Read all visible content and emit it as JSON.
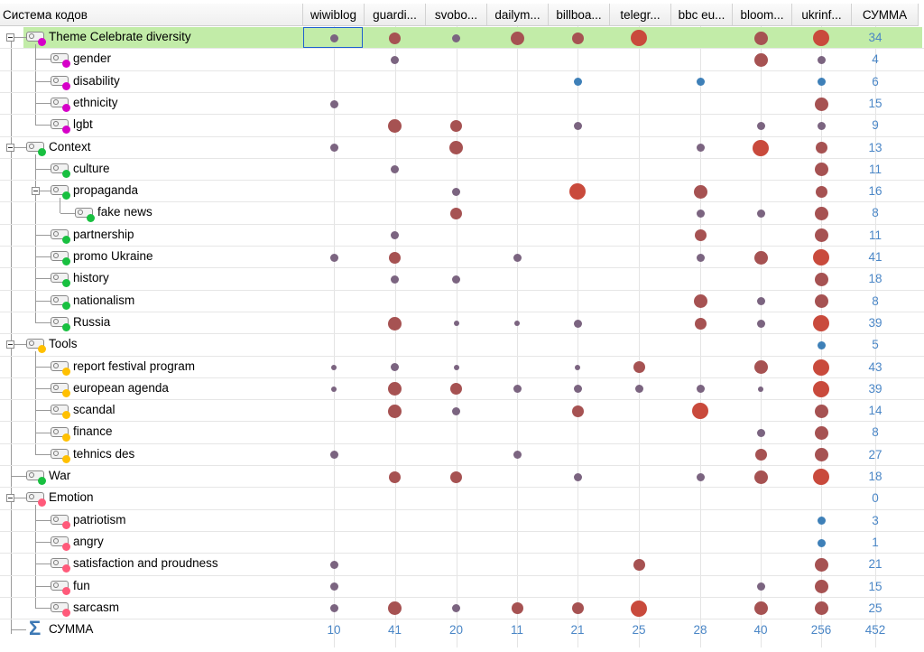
{
  "header": {
    "tree_title": "Система кодов",
    "columns": [
      "wiwiblog",
      "guardi...",
      "svobo...",
      "dailym...",
      "billboa...",
      "telegr...",
      "bbc eu...",
      "bloom...",
      "ukrinf...",
      "СУММА"
    ]
  },
  "colors": {
    "pink": "#d600c8",
    "green": "#18c040",
    "yellow": "#ffc000",
    "rose": "#ff5a7a",
    "dot_red": "#c94a3c",
    "dot_brown": "#a65252",
    "dot_mauve": "#7b6480",
    "dot_blue": "#3e80b8",
    "count_blue": "#4a86c6",
    "selection": "#c2eca8"
  },
  "rows": [
    {
      "label": "Theme Celebrate diversity",
      "level": 0,
      "expander": true,
      "color": "pink",
      "total": "34",
      "selected": true,
      "cells": [
        [
          1,
          "mauve"
        ],
        [
          2,
          "brown"
        ],
        [
          1,
          "mauve"
        ],
        [
          3,
          "brown"
        ],
        [
          2,
          "brown"
        ],
        [
          4,
          "red"
        ],
        [
          0,
          ""
        ],
        [
          3,
          "brown"
        ],
        [
          4,
          "red"
        ]
      ]
    },
    {
      "label": "gender",
      "level": 1,
      "color": "pink",
      "total": "4",
      "cells": [
        [
          0,
          ""
        ],
        [
          1,
          "mauve"
        ],
        [
          0,
          ""
        ],
        [
          0,
          ""
        ],
        [
          0,
          ""
        ],
        [
          0,
          ""
        ],
        [
          0,
          ""
        ],
        [
          3,
          "brown"
        ],
        [
          1,
          "mauve"
        ]
      ]
    },
    {
      "label": "disability",
      "level": 1,
      "color": "pink",
      "total": "6",
      "cells": [
        [
          0,
          ""
        ],
        [
          0,
          ""
        ],
        [
          0,
          ""
        ],
        [
          0,
          ""
        ],
        [
          1,
          "blue"
        ],
        [
          0,
          ""
        ],
        [
          1,
          "blue"
        ],
        [
          0,
          ""
        ],
        [
          1,
          "blue"
        ]
      ]
    },
    {
      "label": "ethnicity",
      "level": 1,
      "color": "pink",
      "total": "15",
      "cells": [
        [
          1,
          "mauve"
        ],
        [
          0,
          ""
        ],
        [
          0,
          ""
        ],
        [
          0,
          ""
        ],
        [
          0,
          ""
        ],
        [
          0,
          ""
        ],
        [
          0,
          ""
        ],
        [
          0,
          ""
        ],
        [
          3,
          "brown"
        ]
      ]
    },
    {
      "label": "lgbt",
      "level": 1,
      "color": "pink",
      "total": "9",
      "cells": [
        [
          0,
          ""
        ],
        [
          3,
          "brown"
        ],
        [
          2,
          "brown"
        ],
        [
          0,
          ""
        ],
        [
          1,
          "mauve"
        ],
        [
          0,
          ""
        ],
        [
          0,
          ""
        ],
        [
          1,
          "mauve"
        ],
        [
          1,
          "mauve"
        ]
      ]
    },
    {
      "label": "Context",
      "level": 0,
      "expander": true,
      "color": "green",
      "total": "13",
      "cells": [
        [
          1,
          "mauve"
        ],
        [
          0,
          ""
        ],
        [
          3,
          "brown"
        ],
        [
          0,
          ""
        ],
        [
          0,
          ""
        ],
        [
          0,
          ""
        ],
        [
          1,
          "mauve"
        ],
        [
          4,
          "red"
        ],
        [
          2,
          "brown"
        ]
      ]
    },
    {
      "label": "culture",
      "level": 1,
      "color": "green",
      "total": "11",
      "cells": [
        [
          0,
          ""
        ],
        [
          1,
          "mauve"
        ],
        [
          0,
          ""
        ],
        [
          0,
          ""
        ],
        [
          0,
          ""
        ],
        [
          0,
          ""
        ],
        [
          0,
          ""
        ],
        [
          0,
          ""
        ],
        [
          3,
          "brown"
        ]
      ]
    },
    {
      "label": "propaganda",
      "level": 1,
      "expander": true,
      "color": "green",
      "total": "16",
      "cells": [
        [
          0,
          ""
        ],
        [
          0,
          ""
        ],
        [
          1,
          "mauve"
        ],
        [
          0,
          ""
        ],
        [
          4,
          "red"
        ],
        [
          0,
          ""
        ],
        [
          3,
          "brown"
        ],
        [
          0,
          ""
        ],
        [
          2,
          "brown"
        ]
      ]
    },
    {
      "label": "fake news",
      "level": 2,
      "color": "green",
      "total": "8",
      "cells": [
        [
          0,
          ""
        ],
        [
          0,
          ""
        ],
        [
          2,
          "brown"
        ],
        [
          0,
          ""
        ],
        [
          0,
          ""
        ],
        [
          0,
          ""
        ],
        [
          1,
          "mauve"
        ],
        [
          1,
          "mauve"
        ],
        [
          3,
          "brown"
        ]
      ]
    },
    {
      "label": "partnership",
      "level": 1,
      "color": "green",
      "total": "11",
      "cells": [
        [
          0,
          ""
        ],
        [
          1,
          "mauve"
        ],
        [
          0,
          ""
        ],
        [
          0,
          ""
        ],
        [
          0,
          ""
        ],
        [
          0,
          ""
        ],
        [
          2,
          "brown"
        ],
        [
          0,
          ""
        ],
        [
          3,
          "brown"
        ]
      ]
    },
    {
      "label": "promo Ukraine",
      "level": 1,
      "color": "green",
      "total": "41",
      "cells": [
        [
          1,
          "mauve"
        ],
        [
          2,
          "brown"
        ],
        [
          0,
          ""
        ],
        [
          1,
          "mauve"
        ],
        [
          0,
          ""
        ],
        [
          0,
          ""
        ],
        [
          1,
          "mauve"
        ],
        [
          3,
          "brown"
        ],
        [
          4,
          "red"
        ]
      ]
    },
    {
      "label": "history",
      "level": 1,
      "color": "green",
      "total": "18",
      "cells": [
        [
          0,
          ""
        ],
        [
          1,
          "mauve"
        ],
        [
          1,
          "mauve"
        ],
        [
          0,
          ""
        ],
        [
          0,
          ""
        ],
        [
          0,
          ""
        ],
        [
          0,
          ""
        ],
        [
          0,
          ""
        ],
        [
          3,
          "brown"
        ]
      ]
    },
    {
      "label": "nationalism",
      "level": 1,
      "color": "green",
      "total": "8",
      "cells": [
        [
          0,
          ""
        ],
        [
          0,
          ""
        ],
        [
          0,
          ""
        ],
        [
          0,
          ""
        ],
        [
          0,
          ""
        ],
        [
          0,
          ""
        ],
        [
          3,
          "brown"
        ],
        [
          1,
          "mauve"
        ],
        [
          3,
          "brown"
        ]
      ]
    },
    {
      "label": "Russia",
      "level": 1,
      "color": "green",
      "total": "39",
      "cells": [
        [
          0,
          ""
        ],
        [
          3,
          "brown"
        ],
        [
          0.5,
          "mauve"
        ],
        [
          0.5,
          "mauve"
        ],
        [
          1,
          "mauve"
        ],
        [
          0,
          ""
        ],
        [
          2,
          "brown"
        ],
        [
          1,
          "mauve"
        ],
        [
          4,
          "red"
        ]
      ]
    },
    {
      "label": "Tools",
      "level": 0,
      "expander": true,
      "color": "yellow",
      "total": "5",
      "cells": [
        [
          0,
          ""
        ],
        [
          0,
          ""
        ],
        [
          0,
          ""
        ],
        [
          0,
          ""
        ],
        [
          0,
          ""
        ],
        [
          0,
          ""
        ],
        [
          0,
          ""
        ],
        [
          0,
          ""
        ],
        [
          1,
          "blue"
        ]
      ]
    },
    {
      "label": "report festival program",
      "level": 1,
      "color": "yellow",
      "total": "43",
      "cells": [
        [
          0.5,
          "mauve"
        ],
        [
          1,
          "mauve"
        ],
        [
          0.5,
          "mauve"
        ],
        [
          0,
          ""
        ],
        [
          0.5,
          "mauve"
        ],
        [
          2,
          "brown"
        ],
        [
          0,
          ""
        ],
        [
          3,
          "brown"
        ],
        [
          4,
          "red"
        ]
      ]
    },
    {
      "label": "european agenda",
      "level": 1,
      "color": "yellow",
      "total": "39",
      "cells": [
        [
          0.5,
          "mauve"
        ],
        [
          3,
          "brown"
        ],
        [
          2,
          "brown"
        ],
        [
          1,
          "mauve"
        ],
        [
          1,
          "mauve"
        ],
        [
          1,
          "mauve"
        ],
        [
          1,
          "mauve"
        ],
        [
          0.5,
          "mauve"
        ],
        [
          4,
          "red"
        ]
      ]
    },
    {
      "label": "scandal",
      "level": 1,
      "color": "yellow",
      "total": "14",
      "cells": [
        [
          0,
          ""
        ],
        [
          3,
          "brown"
        ],
        [
          1,
          "mauve"
        ],
        [
          0,
          ""
        ],
        [
          2,
          "brown"
        ],
        [
          0,
          ""
        ],
        [
          4,
          "red"
        ],
        [
          0,
          ""
        ],
        [
          3,
          "brown"
        ]
      ]
    },
    {
      "label": "finance",
      "level": 1,
      "color": "yellow",
      "total": "8",
      "cells": [
        [
          0,
          ""
        ],
        [
          0,
          ""
        ],
        [
          0,
          ""
        ],
        [
          0,
          ""
        ],
        [
          0,
          ""
        ],
        [
          0,
          ""
        ],
        [
          0,
          ""
        ],
        [
          1,
          "mauve"
        ],
        [
          3,
          "brown"
        ]
      ]
    },
    {
      "label": "tehnics des",
      "level": 1,
      "color": "yellow",
      "total": "27",
      "cells": [
        [
          1,
          "mauve"
        ],
        [
          0,
          ""
        ],
        [
          0,
          ""
        ],
        [
          1,
          "mauve"
        ],
        [
          0,
          ""
        ],
        [
          0,
          ""
        ],
        [
          0,
          ""
        ],
        [
          2,
          "brown"
        ],
        [
          3,
          "brown"
        ]
      ]
    },
    {
      "label": "War",
      "level": 0,
      "color": "green",
      "total": "18",
      "cells": [
        [
          0,
          ""
        ],
        [
          2,
          "brown"
        ],
        [
          2,
          "brown"
        ],
        [
          0,
          ""
        ],
        [
          1,
          "mauve"
        ],
        [
          0,
          ""
        ],
        [
          1,
          "mauve"
        ],
        [
          3,
          "brown"
        ],
        [
          4,
          "red"
        ]
      ]
    },
    {
      "label": "Emotion",
      "level": 0,
      "expander": true,
      "color": "rose",
      "total": "0",
      "cells": [
        [
          0,
          ""
        ],
        [
          0,
          ""
        ],
        [
          0,
          ""
        ],
        [
          0,
          ""
        ],
        [
          0,
          ""
        ],
        [
          0,
          ""
        ],
        [
          0,
          ""
        ],
        [
          0,
          ""
        ],
        [
          0,
          ""
        ]
      ]
    },
    {
      "label": "patriotism",
      "level": 1,
      "color": "rose",
      "total": "3",
      "cells": [
        [
          0,
          ""
        ],
        [
          0,
          ""
        ],
        [
          0,
          ""
        ],
        [
          0,
          ""
        ],
        [
          0,
          ""
        ],
        [
          0,
          ""
        ],
        [
          0,
          ""
        ],
        [
          0,
          ""
        ],
        [
          1,
          "blue"
        ]
      ]
    },
    {
      "label": "angry",
      "level": 1,
      "color": "rose",
      "total": "1",
      "cells": [
        [
          0,
          ""
        ],
        [
          0,
          ""
        ],
        [
          0,
          ""
        ],
        [
          0,
          ""
        ],
        [
          0,
          ""
        ],
        [
          0,
          ""
        ],
        [
          0,
          ""
        ],
        [
          0,
          ""
        ],
        [
          1,
          "blue"
        ]
      ]
    },
    {
      "label": "satisfaction and proudness",
      "level": 1,
      "color": "rose",
      "total": "21",
      "cells": [
        [
          1,
          "mauve"
        ],
        [
          0,
          ""
        ],
        [
          0,
          ""
        ],
        [
          0,
          ""
        ],
        [
          0,
          ""
        ],
        [
          2,
          "brown"
        ],
        [
          0,
          ""
        ],
        [
          0,
          ""
        ],
        [
          3,
          "brown"
        ]
      ]
    },
    {
      "label": "fun",
      "level": 1,
      "color": "rose",
      "total": "15",
      "cells": [
        [
          1,
          "mauve"
        ],
        [
          0,
          ""
        ],
        [
          0,
          ""
        ],
        [
          0,
          ""
        ],
        [
          0,
          ""
        ],
        [
          0,
          ""
        ],
        [
          0,
          ""
        ],
        [
          1,
          "mauve"
        ],
        [
          3,
          "brown"
        ]
      ]
    },
    {
      "label": "sarcasm",
      "level": 1,
      "color": "rose",
      "total": "25",
      "cells": [
        [
          1,
          "mauve"
        ],
        [
          3,
          "brown"
        ],
        [
          1,
          "mauve"
        ],
        [
          2,
          "brown"
        ],
        [
          2,
          "brown"
        ],
        [
          4,
          "red"
        ],
        [
          0,
          ""
        ],
        [
          3,
          "brown"
        ],
        [
          3,
          "brown"
        ]
      ]
    }
  ],
  "sum_row": {
    "label": "СУММА",
    "icon": "sigma-icon",
    "values": [
      "10",
      "41",
      "20",
      "11",
      "21",
      "25",
      "28",
      "40",
      "256",
      "452"
    ]
  }
}
